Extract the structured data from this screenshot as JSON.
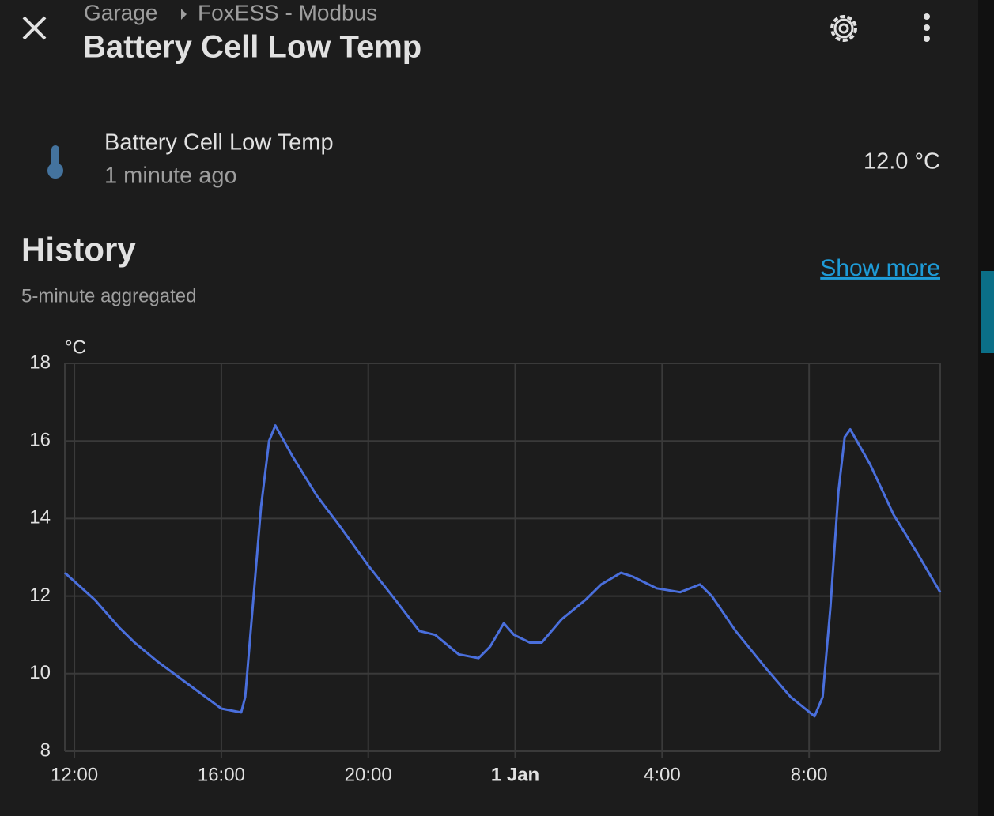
{
  "header": {
    "breadcrumb": [
      "Garage",
      "FoxESS - Modbus"
    ],
    "title": "Battery Cell Low Temp"
  },
  "entity": {
    "name": "Battery Cell Low Temp",
    "last_changed": "1 minute ago",
    "state": "12.0 °C"
  },
  "history": {
    "title": "History",
    "subtitle": "5-minute aggregated",
    "link": "Show more"
  },
  "chart_data": {
    "type": "line",
    "y_unit": "°C",
    "color": "#4a6fdc",
    "grid": true,
    "x": [
      11.74,
      12.56,
      13.21,
      13.64,
      14.28,
      15.14,
      16.0,
      16.54,
      16.65,
      16.87,
      17.08,
      17.3,
      17.47,
      17.94,
      18.59,
      19.23,
      19.99,
      20.74,
      21.39,
      21.82,
      22.46,
      23.0,
      23.32,
      23.69,
      23.97,
      24.4,
      24.72,
      25.26,
      25.91,
      26.34,
      26.88,
      27.2,
      27.85,
      28.49,
      29.03,
      29.35,
      30.0,
      30.86,
      31.5,
      32.15,
      32.37,
      32.58,
      32.8,
      32.97,
      33.12,
      33.66,
      34.3,
      34.95,
      35.57
    ],
    "values": [
      12.6,
      11.9,
      11.2,
      10.8,
      10.3,
      9.7,
      9.1,
      9.0,
      9.4,
      11.9,
      14.3,
      16.0,
      16.4,
      15.6,
      14.6,
      13.8,
      12.8,
      11.9,
      11.1,
      11.0,
      10.5,
      10.4,
      10.7,
      11.3,
      11.0,
      10.8,
      10.8,
      11.4,
      11.9,
      12.3,
      12.6,
      12.5,
      12.2,
      12.1,
      12.3,
      12.0,
      11.1,
      10.1,
      9.4,
      8.9,
      9.4,
      11.7,
      14.7,
      16.1,
      16.3,
      15.4,
      14.1,
      13.1,
      12.1
    ],
    "xlim": [
      11.74,
      35.57
    ],
    "xticks": [
      {
        "value": 12,
        "label": "12:00"
      },
      {
        "value": 16,
        "label": "16:00"
      },
      {
        "value": 20,
        "label": "20:00"
      },
      {
        "value": 24,
        "label": "1 Jan"
      },
      {
        "value": 28,
        "label": "4:00"
      },
      {
        "value": 32,
        "label": "8:00"
      }
    ],
    "ylim": [
      8,
      18
    ],
    "yticks": [
      8,
      10,
      12,
      14,
      16,
      18
    ]
  }
}
